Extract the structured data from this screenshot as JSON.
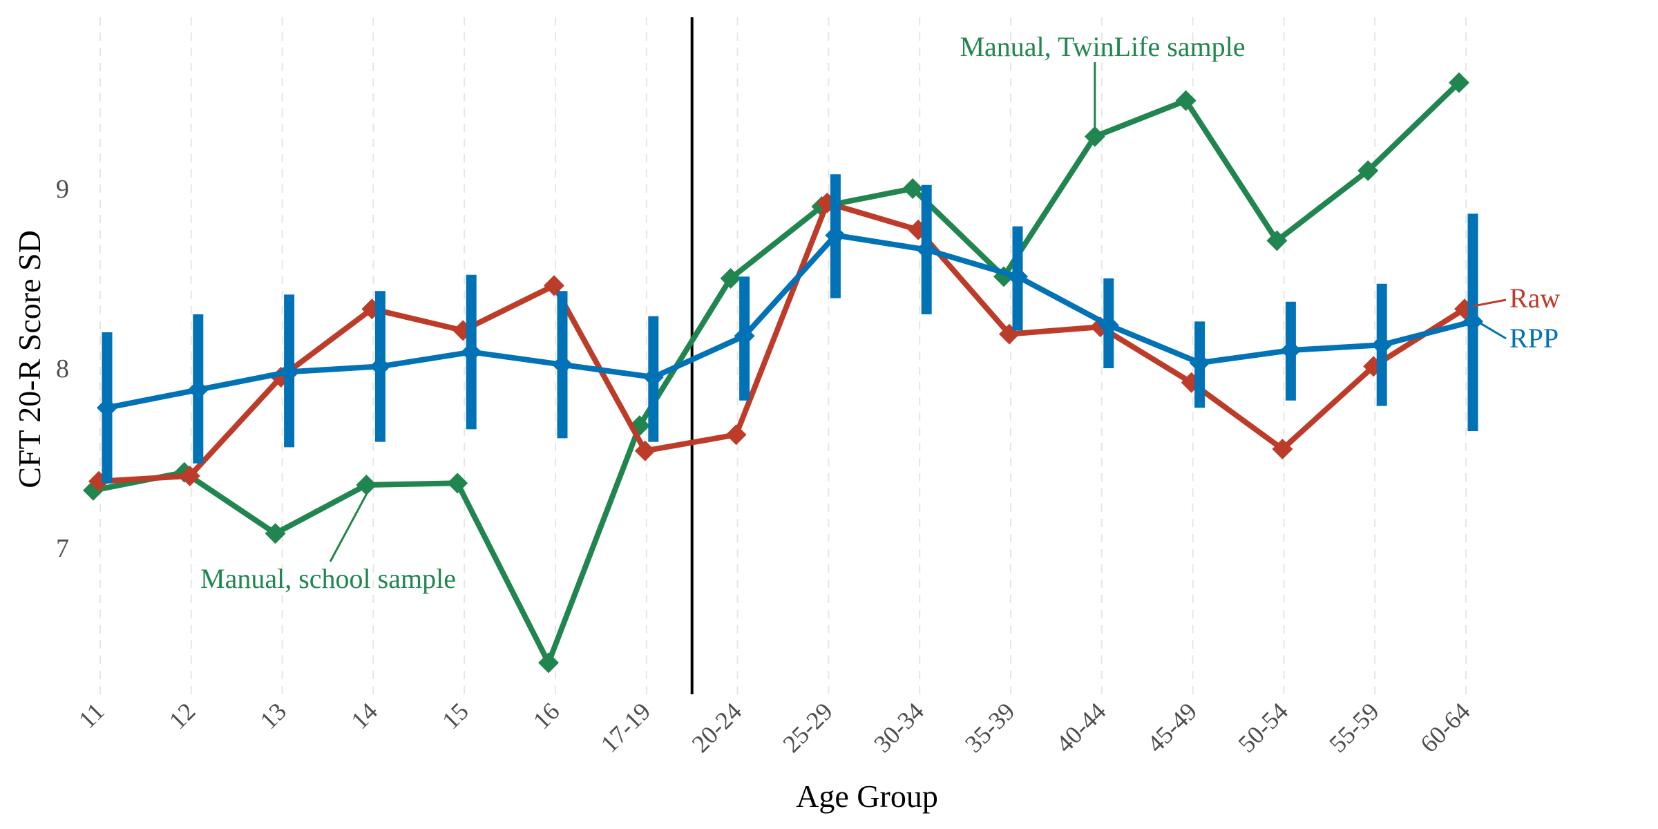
{
  "chart_data": {
    "type": "line",
    "title": "",
    "xlabel": "Age Group",
    "ylabel": "CFT 20-R Score SD",
    "categories": [
      "11",
      "12",
      "13",
      "14",
      "15",
      "16",
      "17-19",
      "20-24",
      "25-29",
      "30-34",
      "35-39",
      "40-44",
      "45-49",
      "50-54",
      "55-59",
      "60-64"
    ],
    "y_ticks": [
      "7",
      "8",
      "9"
    ],
    "ylim": [
      6.2,
      10.0
    ],
    "grid": "vertical dashed",
    "legend": "direct labels",
    "divider_after_category": "17-19",
    "series": [
      {
        "key": "raw",
        "name": "Raw",
        "color": "#BC3C29",
        "values": [
          7.37,
          7.4,
          7.95,
          8.33,
          8.21,
          8.46,
          7.54,
          7.63,
          8.92,
          8.77,
          8.19,
          8.23,
          7.92,
          7.55,
          8.01,
          8.33
        ]
      },
      {
        "key": "rpp",
        "name": "RPP",
        "color": "#0072B5",
        "values": [
          7.78,
          7.88,
          7.98,
          8.01,
          8.09,
          8.02,
          7.95,
          8.18,
          8.74,
          8.66,
          8.51,
          8.24,
          8.03,
          8.1,
          8.13,
          8.26
        ],
        "error_low": [
          7.36,
          7.47,
          7.56,
          7.59,
          7.66,
          7.61,
          7.59,
          7.82,
          8.39,
          8.3,
          8.21,
          8.0,
          7.78,
          7.82,
          7.79,
          7.65
        ],
        "error_high": [
          8.2,
          8.3,
          8.41,
          8.43,
          8.52,
          8.43,
          8.29,
          8.51,
          9.08,
          9.02,
          8.79,
          8.5,
          8.26,
          8.37,
          8.47,
          8.86
        ]
      },
      {
        "key": "manual_school",
        "name": "Manual, school sample",
        "color": "#20854E",
        "x": [
          "11",
          "12",
          "13",
          "14",
          "15",
          "16",
          "17-19"
        ],
        "values": [
          7.32,
          7.42,
          7.08,
          7.35,
          7.36,
          6.36,
          7.68
        ]
      },
      {
        "key": "manual_twinlife",
        "name": "Manual, TwinLife sample",
        "color": "#20854E",
        "x": [
          "17-19",
          "20-24",
          "25-29",
          "30-34",
          "35-39",
          "40-44",
          "45-49",
          "50-54",
          "55-59",
          "60-64"
        ],
        "values": [
          7.68,
          8.5,
          8.9,
          9.0,
          8.51,
          9.29,
          9.49,
          8.71,
          9.1,
          9.59
        ]
      }
    ]
  }
}
